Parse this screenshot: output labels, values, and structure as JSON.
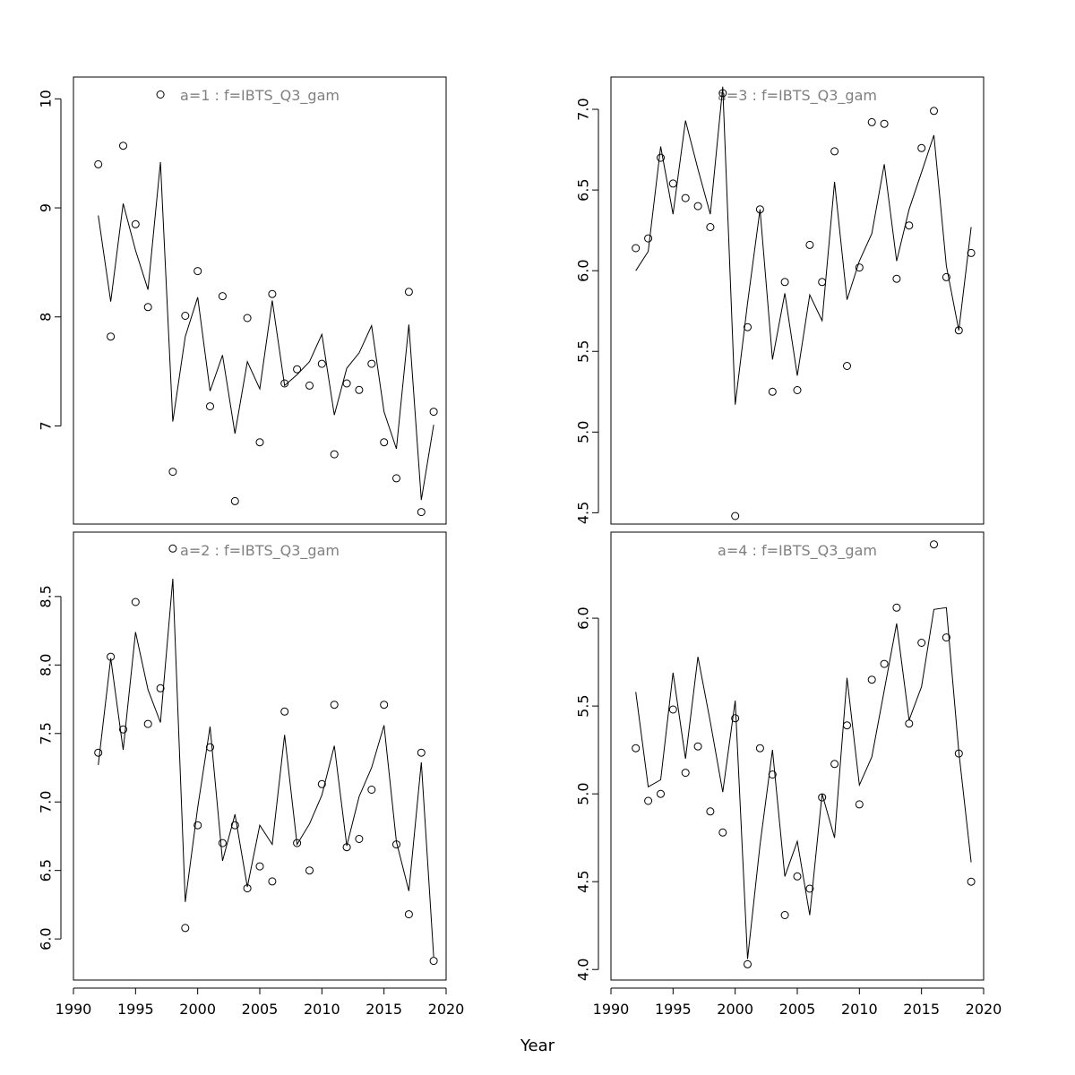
{
  "xlabel": "Year",
  "chart_data": [
    {
      "type": "line+scatter",
      "title": "a=1  :  f=IBTS_Q3_gam",
      "xlim": [
        1990,
        2020
      ],
      "x_ticks": [
        1990,
        1995,
        2000,
        2005,
        2010,
        2015,
        2020
      ],
      "ylim": [
        6.1,
        10.2
      ],
      "y_ticks": [
        7,
        8,
        9,
        10
      ],
      "x": [
        1992,
        1993,
        1994,
        1995,
        1996,
        1997,
        1998,
        1999,
        2000,
        2001,
        2002,
        2003,
        2004,
        2005,
        2006,
        2007,
        2008,
        2009,
        2010,
        2011,
        2012,
        2013,
        2014,
        2015,
        2016,
        2017,
        2018,
        2019
      ],
      "series": [
        {
          "kind": "points",
          "values": [
            9.4,
            7.82,
            9.57,
            8.85,
            8.09,
            10.04,
            6.58,
            8.01,
            8.42,
            7.18,
            8.19,
            6.31,
            7.99,
            6.85,
            8.21,
            7.39,
            7.52,
            7.37,
            7.57,
            6.74,
            7.39,
            7.33,
            7.57,
            6.85,
            6.52,
            8.23,
            6.21,
            7.13
          ]
        },
        {
          "kind": "line",
          "values": [
            8.93,
            8.14,
            9.04,
            8.61,
            8.25,
            9.42,
            7.04,
            7.82,
            8.18,
            7.32,
            7.65,
            6.93,
            7.59,
            7.34,
            8.15,
            7.37,
            7.47,
            7.59,
            7.84,
            7.1,
            7.53,
            7.67,
            7.92,
            7.13,
            6.79,
            7.93,
            6.32,
            7.01
          ]
        }
      ]
    },
    {
      "type": "line+scatter",
      "title": "a=3  :  f=IBTS_Q3_gam",
      "xlim": [
        1990,
        2020
      ],
      "x_ticks": [
        1990,
        1995,
        2000,
        2005,
        2010,
        2015,
        2020
      ],
      "ylim": [
        4.43,
        7.2
      ],
      "y_ticks": [
        4.5,
        5.0,
        5.5,
        6.0,
        6.5,
        7.0
      ],
      "x": [
        1992,
        1993,
        1994,
        1995,
        1996,
        1997,
        1998,
        1999,
        2000,
        2001,
        2002,
        2003,
        2004,
        2005,
        2006,
        2007,
        2008,
        2009,
        2010,
        2011,
        2012,
        2013,
        2014,
        2015,
        2016,
        2017,
        2018,
        2019
      ],
      "series": [
        {
          "kind": "points",
          "values": [
            6.14,
            6.2,
            6.7,
            6.54,
            6.45,
            6.4,
            6.27,
            7.1,
            4.48,
            5.65,
            6.38,
            5.25,
            5.93,
            5.26,
            6.16,
            5.93,
            6.74,
            5.41,
            6.02,
            6.92,
            6.91,
            5.95,
            6.28,
            6.76,
            6.99,
            5.96,
            5.63,
            6.11
          ]
        },
        {
          "kind": "line",
          "values": [
            6.0,
            6.12,
            6.77,
            6.35,
            6.93,
            6.63,
            6.35,
            7.14,
            5.17,
            5.8,
            6.38,
            5.45,
            5.86,
            5.35,
            5.85,
            5.69,
            6.55,
            5.82,
            6.06,
            6.23,
            6.66,
            6.06,
            6.38,
            6.61,
            6.84,
            6.03,
            5.63,
            6.27
          ]
        }
      ]
    },
    {
      "type": "line+scatter",
      "title": "a=2  :  f=IBTS_Q3_gam",
      "xlim": [
        1990,
        2020
      ],
      "x_ticks": [
        1990,
        1995,
        2000,
        2005,
        2010,
        2015,
        2020
      ],
      "ylim": [
        5.7,
        8.97
      ],
      "y_ticks": [
        6.0,
        6.5,
        7.0,
        7.5,
        8.0,
        8.5
      ],
      "x": [
        1992,
        1993,
        1994,
        1995,
        1996,
        1997,
        1998,
        1999,
        2000,
        2001,
        2002,
        2003,
        2004,
        2005,
        2006,
        2007,
        2008,
        2009,
        2010,
        2011,
        2012,
        2013,
        2014,
        2015,
        2016,
        2017,
        2018,
        2019
      ],
      "series": [
        {
          "kind": "points",
          "values": [
            7.36,
            8.06,
            7.53,
            8.46,
            7.57,
            7.83,
            8.85,
            6.08,
            6.83,
            7.4,
            6.7,
            6.83,
            6.37,
            6.53,
            6.42,
            7.66,
            6.7,
            6.5,
            7.13,
            7.71,
            6.67,
            6.73,
            7.09,
            7.71,
            6.69,
            6.18,
            7.36,
            5.84
          ]
        },
        {
          "kind": "line",
          "values": [
            7.27,
            8.05,
            7.38,
            8.24,
            7.82,
            7.58,
            8.63,
            6.27,
            6.96,
            7.55,
            6.57,
            6.91,
            6.38,
            6.83,
            6.69,
            7.49,
            6.69,
            6.84,
            7.05,
            7.41,
            6.68,
            7.04,
            7.25,
            7.56,
            6.71,
            6.35,
            7.29,
            5.87
          ]
        }
      ]
    },
    {
      "type": "line+scatter",
      "title": "a=4  :  f=IBTS_Q3_gam",
      "xlim": [
        1990,
        2020
      ],
      "x_ticks": [
        1990,
        1995,
        2000,
        2005,
        2010,
        2015,
        2020
      ],
      "ylim": [
        3.94,
        6.49
      ],
      "y_ticks": [
        4.0,
        4.5,
        5.0,
        5.5,
        6.0
      ],
      "x": [
        1992,
        1993,
        1994,
        1995,
        1996,
        1997,
        1998,
        1999,
        2000,
        2001,
        2002,
        2003,
        2004,
        2005,
        2006,
        2007,
        2008,
        2009,
        2010,
        2011,
        2012,
        2013,
        2014,
        2015,
        2016,
        2017,
        2018,
        2019
      ],
      "series": [
        {
          "kind": "points",
          "values": [
            5.26,
            4.96,
            5.0,
            5.48,
            5.12,
            5.27,
            4.9,
            4.78,
            5.43,
            4.03,
            5.26,
            5.11,
            4.31,
            4.53,
            4.46,
            4.98,
            5.17,
            5.39,
            4.94,
            5.65,
            5.74,
            6.06,
            5.4,
            5.86,
            6.42,
            5.89,
            5.23,
            4.5
          ]
        },
        {
          "kind": "line",
          "values": [
            5.58,
            5.04,
            5.08,
            5.69,
            5.2,
            5.78,
            5.41,
            5.01,
            5.53,
            4.06,
            4.71,
            5.25,
            4.53,
            4.73,
            4.31,
            5.0,
            4.75,
            5.66,
            5.05,
            5.21,
            5.59,
            5.97,
            5.42,
            5.61,
            6.05,
            6.06,
            5.24,
            4.61
          ]
        }
      ]
    }
  ]
}
